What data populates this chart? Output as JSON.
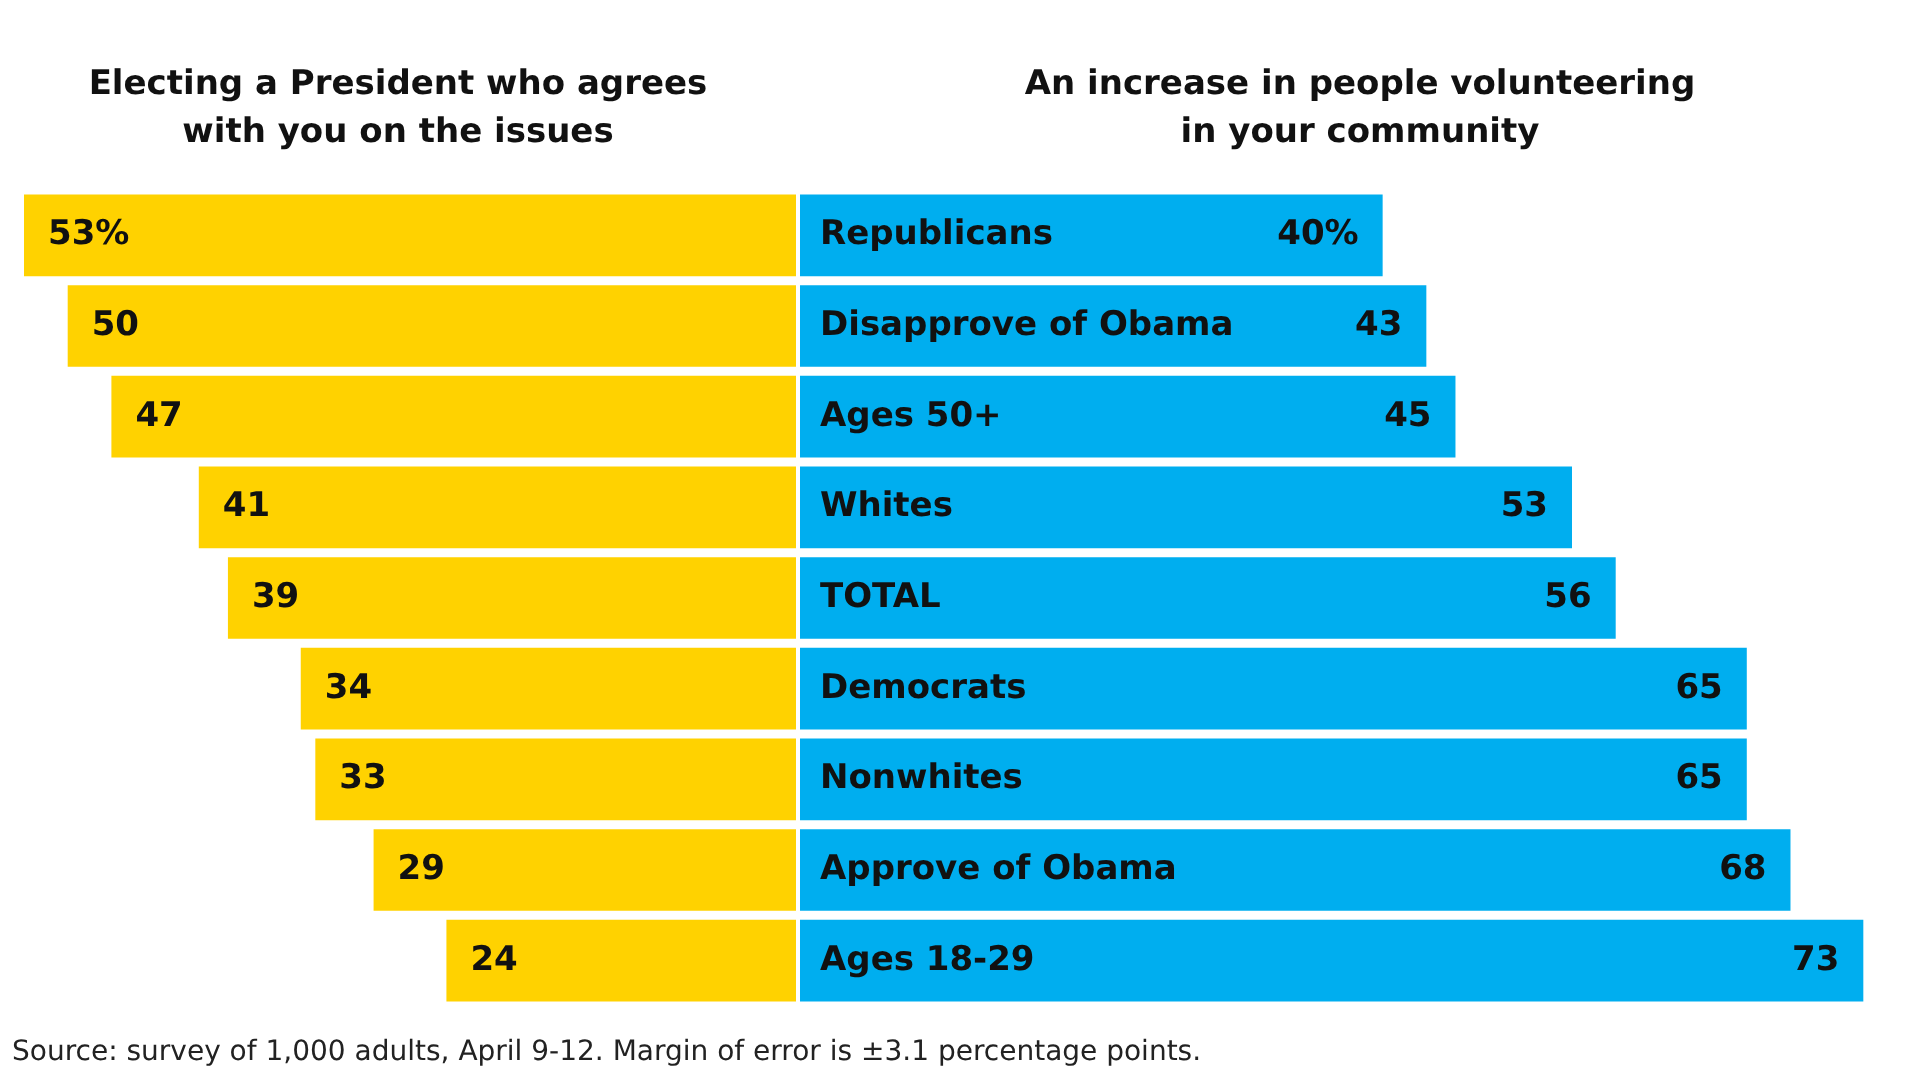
{
  "chart_data": [
    {
      "type": "bar",
      "orientation": "horizontal",
      "title": "Electing a President who agrees\nwith you on the issues",
      "categories": [
        "Republicans",
        "Disapprove of Obama",
        "Ages 50+",
        "Whites",
        "TOTAL",
        "Democrats",
        "Nonwhites",
        "Approve of Obama",
        "Ages 18-29"
      ],
      "series": [
        {
          "color": "#ffd200",
          "values": [
            53,
            50,
            47,
            41,
            39,
            34,
            33,
            29,
            24
          ],
          "value_labels": [
            "53%",
            "50",
            "47",
            "41",
            "39",
            "34",
            "33",
            "29",
            "24"
          ]
        }
      ],
      "annotations": [
        "Source: survey of 1,000 adults, April 9-12. Margin of error is ±3.1 percentage points."
      ]
    },
    {
      "type": "bar",
      "orientation": "horizontal",
      "title": "An increase in people volunteering\nin your community",
      "categories": [
        null,
        null,
        null,
        null,
        null,
        null,
        null,
        null,
        null
      ],
      "series": [
        {
          "color": "#00aeef",
          "values": [
            40,
            43,
            45,
            53,
            56,
            65,
            65,
            68,
            73
          ],
          "value_labels": [
            "40%",
            "43",
            "45",
            "53",
            "56",
            "65",
            "65",
            "68",
            "73"
          ]
        }
      ]
    }
  ]
}
